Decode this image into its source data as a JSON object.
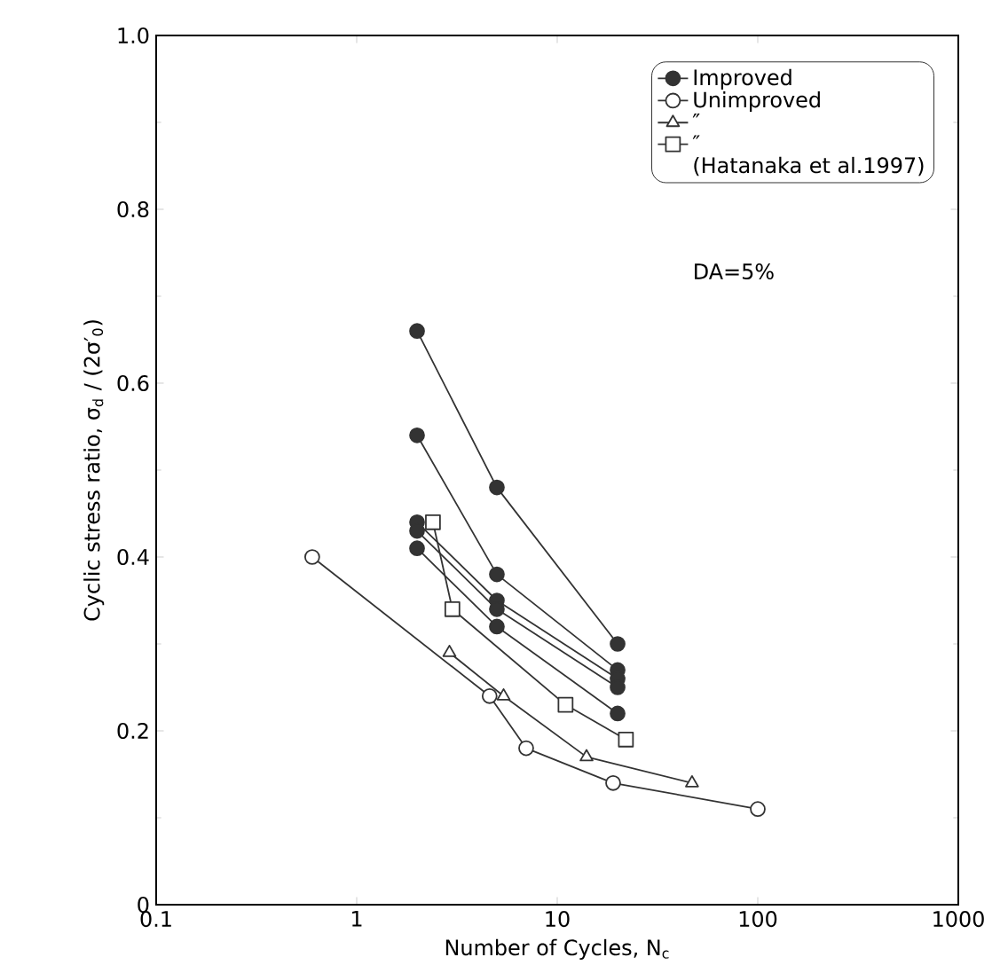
{
  "chart_data": {
    "type": "line",
    "xlabel": "Number of Cycles, N$_{c}$",
    "ylabel": "Cyclic stress ratio, σ$_{d}$ / (2σ′$_{0}$)",
    "log": "x",
    "xlim": [
      0.1,
      1000
    ],
    "xticks": [
      0.1,
      1,
      10,
      100,
      1000
    ],
    "ylim": [
      0,
      1
    ],
    "yticks": [
      0,
      0.2,
      0.4,
      0.6,
      0.8,
      {
        "value": 1,
        "label": "1.0"
      }
    ],
    "grid": false,
    "legend": "top right",
    "line_style": "solid",
    "annotations": [
      "(Hatanaka et al.1997)",
      "DA=5%"
    ],
    "series": [
      {
        "name": "Improved",
        "color": "#333333",
        "marker": "circle",
        "x": [
          2,
          5,
          20
        ],
        "values": [
          0.66,
          0.48,
          0.3
        ]
      },
      {
        "color": "#333333",
        "marker": "circle",
        "x": [
          2,
          5,
          20
        ],
        "values": [
          0.54,
          0.38,
          0.27
        ]
      },
      {
        "color": "#333333",
        "marker": "circle",
        "x": [
          2,
          5,
          20
        ],
        "values": [
          0.44,
          0.35,
          0.26
        ]
      },
      {
        "color": "#333333",
        "marker": "circle",
        "x": [
          2,
          5,
          20
        ],
        "values": [
          0.43,
          0.34,
          0.25
        ]
      },
      {
        "color": "#333333",
        "marker": "circle",
        "x": [
          2,
          5,
          20
        ],
        "values": [
          0.41,
          0.32,
          0.22
        ]
      },
      {
        "name": "Unimproved",
        "color": "#ffffff",
        "marker": "circle",
        "x": [
          0.6,
          4.6,
          7,
          19,
          100
        ],
        "values": [
          0.4,
          0.24,
          0.18,
          0.14,
          0.11
        ]
      },
      {
        "name": "″",
        "color": "#ffffff",
        "marker": "triangle",
        "x": [
          2.9,
          5.4,
          14,
          47
        ],
        "values": [
          0.29,
          0.24,
          0.17,
          0.14
        ]
      },
      {
        "name": "″",
        "color": "#ffffff",
        "marker": "square",
        "x": [
          2.4,
          3,
          11,
          22
        ],
        "values": [
          0.44,
          0.34,
          0.23,
          0.19
        ]
      }
    ]
  }
}
